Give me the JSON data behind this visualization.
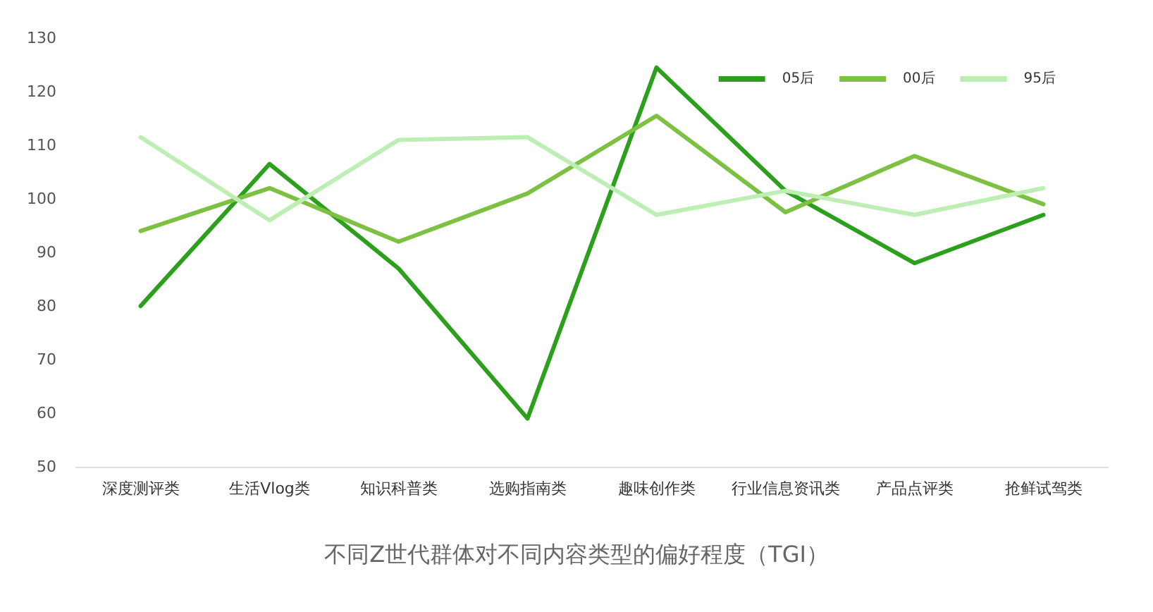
{
  "chart_data": {
    "type": "line",
    "title": "不同Z世代群体对不同内容类型的偏好程度（TGI）",
    "categories": [
      "深度测评类",
      "生活Vlog类",
      "知识科普类",
      "选购指南类",
      "趣味创作类",
      "行业信息资讯类",
      "产品点评类",
      "抢鲜试驾类"
    ],
    "series": [
      {
        "name": "05后",
        "color": "#2ca01c",
        "values": [
          80,
          106.5,
          87,
          59,
          124.5,
          101.5,
          88,
          97
        ]
      },
      {
        "name": "00后",
        "color": "#7cc142",
        "values": [
          94,
          102,
          92,
          101,
          115.5,
          97.5,
          108,
          99
        ]
      },
      {
        "name": "95后",
        "color": "#bdeeb3",
        "values": [
          111.5,
          96,
          111,
          111.5,
          97,
          101.5,
          97,
          102
        ]
      }
    ],
    "ylim": [
      50,
      130
    ],
    "yticks": [
      50,
      60,
      70,
      80,
      90,
      100,
      110,
      120,
      130
    ],
    "grid": false,
    "legend": "top right",
    "marker": "none",
    "line_style": "solid"
  }
}
